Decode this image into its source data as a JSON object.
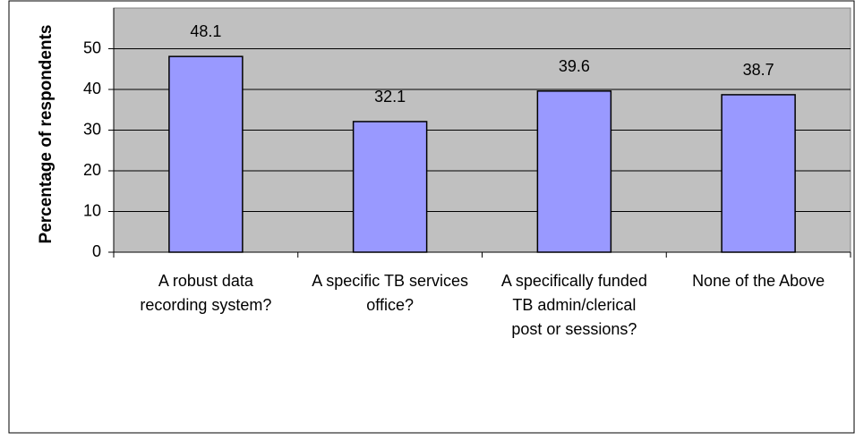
{
  "chart_data": {
    "type": "bar",
    "y_label": "Percentage of respondents",
    "categories": [
      "A robust data recording system?",
      "A specific TB services office?",
      "A specifically funded TB admin/clerical post or sessions?",
      "None of the Above"
    ],
    "values": [
      48.1,
      32.1,
      39.6,
      38.7
    ],
    "color": "#9999ff",
    "plot_background": "#c0c0c0",
    "ylim": [
      0,
      60
    ],
    "yticks": [
      0,
      10,
      20,
      30,
      40,
      50
    ],
    "grid": true
  }
}
